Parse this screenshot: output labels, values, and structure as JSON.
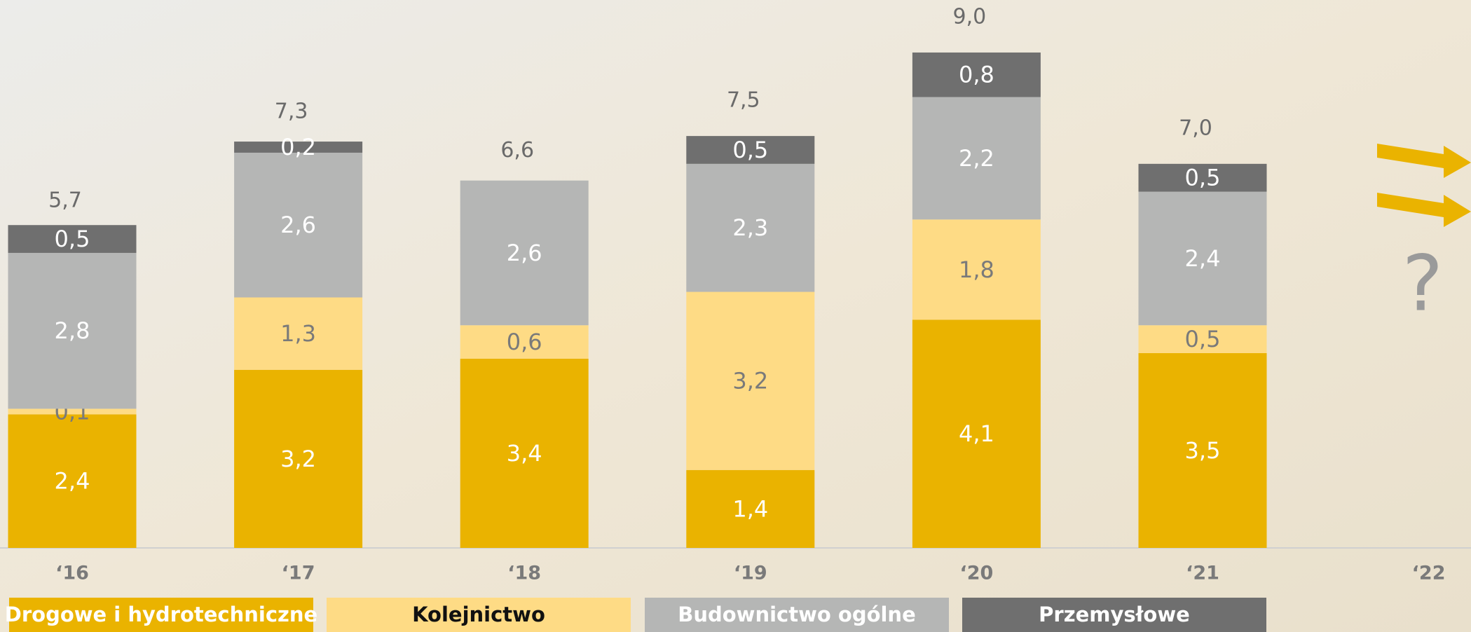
{
  "chart_data": {
    "type": "stacked_bar",
    "categories": [
      "‘16",
      "‘17",
      "‘18",
      "‘19",
      "‘20",
      "‘21",
      "‘22"
    ],
    "series": [
      {
        "name": "Drogowe i hydrotechniczne",
        "color": "#eab300",
        "values": [
          2.4,
          3.2,
          3.4,
          1.4,
          4.1,
          3.5,
          null
        ],
        "value_labels": [
          "2,4",
          "3,2",
          "3,4",
          "1,4",
          "4,1",
          "3,5",
          null
        ]
      },
      {
        "name": "Kolejnictwo",
        "color": "#fedb85",
        "values": [
          0.1,
          1.3,
          0.6,
          3.2,
          1.8,
          0.5,
          null
        ],
        "value_labels": [
          "0,1",
          "1,3",
          "0,6",
          "3,2",
          "1,8",
          "0,5",
          null
        ]
      },
      {
        "name": "Budownictwo ogólne",
        "color": "#b5b6b5",
        "values": [
          2.8,
          2.6,
          2.6,
          2.3,
          2.2,
          2.4,
          null
        ],
        "value_labels": [
          "2,8",
          "2,6",
          "2,6",
          "2,3",
          "2,2",
          "2,4",
          null
        ]
      },
      {
        "name": "Przemysłowe",
        "color": "#6f6f6f",
        "values": [
          0.5,
          0.2,
          0,
          0.5,
          0.8,
          0.5,
          null
        ],
        "value_labels": [
          "0,5",
          "0,2",
          null,
          "0,5",
          "0,8",
          "0,5",
          null
        ]
      }
    ],
    "totals": [
      5.7,
      7.3,
      6.6,
      7.5,
      9.0,
      7.0,
      null
    ],
    "total_labels": [
      "5,7",
      "7,3",
      "6,6",
      "7,5",
      "9,0",
      "7,0",
      null
    ],
    "annotations": [
      "?"
    ],
    "ylim": [
      0,
      9
    ]
  }
}
